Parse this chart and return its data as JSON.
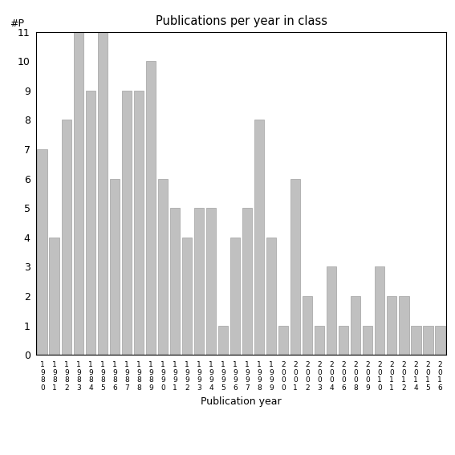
{
  "title": "Publications per year in class",
  "xlabel": "Publication year",
  "ylabel": "#P",
  "bar_color": "#c0c0c0",
  "edge_color": "#a0a0a0",
  "categories": [
    "1980",
    "1981",
    "1982",
    "1983",
    "1984",
    "1985",
    "1986",
    "1987",
    "1988",
    "1989",
    "1990",
    "1991",
    "1992",
    "1993",
    "1994",
    "1995",
    "1996",
    "1997",
    "1998",
    "1999",
    "2000",
    "2001",
    "2002",
    "2003",
    "2004",
    "2006",
    "2008",
    "2009",
    "2010",
    "2011",
    "2012",
    "2014",
    "2015",
    "2016"
  ],
  "values": [
    7,
    4,
    8,
    11,
    9,
    11,
    6,
    9,
    9,
    10,
    6,
    5,
    4,
    5,
    5,
    1,
    4,
    5,
    8,
    4,
    1,
    6,
    2,
    1,
    3,
    1,
    2,
    1,
    3,
    2,
    2,
    1,
    1,
    1
  ],
  "ylim": [
    0,
    11
  ],
  "yticks": [
    0,
    1,
    2,
    3,
    4,
    5,
    6,
    7,
    8,
    9,
    10,
    11
  ]
}
